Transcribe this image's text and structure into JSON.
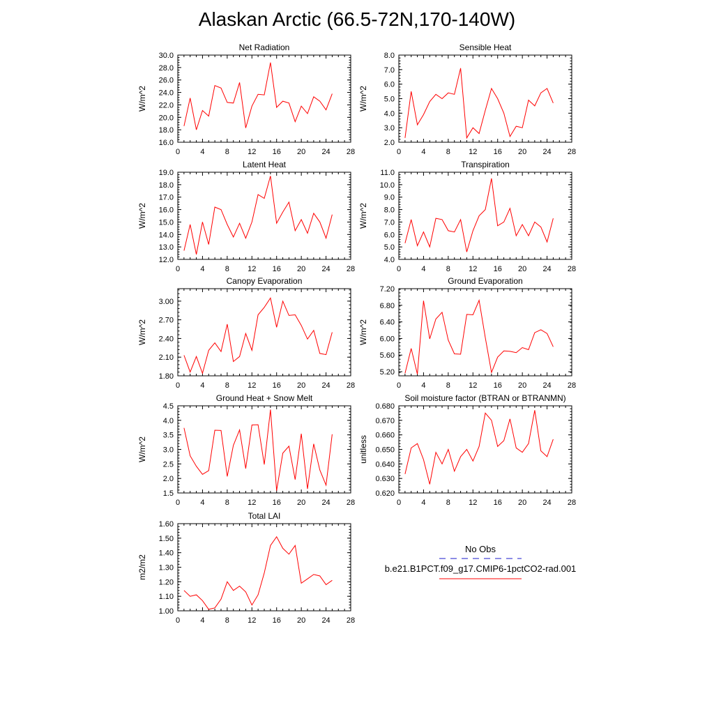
{
  "title": "Alaskan Arctic (66.5-72N,170-140W)",
  "legend": {
    "entries": [
      {
        "label": "No Obs",
        "color": "#1a1acc",
        "dash": "dashed"
      },
      {
        "label": "b.e21.B1PCT.f09_g17.CMIP6-1pctCO2-rad.001",
        "color": "#ff0000",
        "dash": "solid"
      }
    ]
  },
  "chart_data": [
    {
      "type": "line",
      "title": "Net Radiation",
      "ylabel": "W/m^2",
      "xlim": [
        0,
        28
      ],
      "ylim": [
        16,
        30
      ],
      "xticks": [
        0,
        4,
        8,
        12,
        16,
        20,
        24,
        28
      ],
      "yticks": [
        "16.0",
        "18.0",
        "20.0",
        "22.0",
        "24.0",
        "26.0",
        "28.0",
        "30.0"
      ],
      "series": [
        {
          "color": "#ff0000",
          "x": [
            1,
            2,
            3,
            4,
            5,
            6,
            7,
            8,
            9,
            10,
            11,
            12,
            13,
            14,
            15,
            16,
            17,
            18,
            19,
            20,
            21,
            22,
            23,
            24,
            25
          ],
          "values": [
            18.6,
            23.1,
            18.0,
            21.1,
            20.2,
            25.1,
            24.7,
            22.4,
            22.3,
            25.6,
            18.3,
            21.8,
            23.7,
            23.6,
            28.8,
            21.6,
            22.6,
            22.3,
            19.3,
            21.8,
            20.6,
            23.3,
            22.6,
            21.2,
            23.8
          ]
        }
      ]
    },
    {
      "type": "line",
      "title": "Sensible Heat",
      "ylabel": "W/m^2",
      "xlim": [
        0,
        28
      ],
      "ylim": [
        2,
        8
      ],
      "xticks": [
        0,
        4,
        8,
        12,
        16,
        20,
        24,
        28
      ],
      "yticks": [
        "2.0",
        "3.0",
        "4.0",
        "5.0",
        "6.0",
        "7.0",
        "8.0"
      ],
      "series": [
        {
          "color": "#ff0000",
          "x": [
            1,
            2,
            3,
            4,
            5,
            6,
            7,
            8,
            9,
            10,
            11,
            12,
            13,
            14,
            15,
            16,
            17,
            18,
            19,
            20,
            21,
            22,
            23,
            24,
            25
          ],
          "values": [
            2.3,
            5.5,
            3.2,
            3.9,
            4.8,
            5.3,
            5.0,
            5.4,
            5.3,
            7.1,
            2.3,
            3.0,
            2.6,
            4.2,
            5.7,
            5.0,
            4.0,
            2.4,
            3.1,
            3.0,
            4.9,
            4.5,
            5.4,
            5.7,
            4.7
          ]
        }
      ]
    },
    {
      "type": "line",
      "title": "Latent Heat",
      "ylabel": "W/m^2",
      "xlim": [
        0,
        28
      ],
      "ylim": [
        12,
        19
      ],
      "xticks": [
        0,
        4,
        8,
        12,
        16,
        20,
        24,
        28
      ],
      "yticks": [
        "12.0",
        "13.0",
        "14.0",
        "15.0",
        "16.0",
        "17.0",
        "18.0",
        "19.0"
      ],
      "series": [
        {
          "color": "#ff0000",
          "x": [
            1,
            2,
            3,
            4,
            5,
            6,
            7,
            8,
            9,
            10,
            11,
            12,
            13,
            14,
            15,
            16,
            17,
            18,
            19,
            20,
            21,
            22,
            23,
            24,
            25
          ],
          "values": [
            12.7,
            14.8,
            12.4,
            15.0,
            13.2,
            16.2,
            16.0,
            14.8,
            13.8,
            14.9,
            13.7,
            15.0,
            17.2,
            16.9,
            18.7,
            14.9,
            15.8,
            16.6,
            14.3,
            15.2,
            14.1,
            15.7,
            15.0,
            13.7,
            15.6
          ]
        }
      ]
    },
    {
      "type": "line",
      "title": "Transpiration",
      "ylabel": "W/m^2",
      "xlim": [
        0,
        28
      ],
      "ylim": [
        4,
        11
      ],
      "xticks": [
        0,
        4,
        8,
        12,
        16,
        20,
        24,
        28
      ],
      "yticks": [
        "4.0",
        "5.0",
        "6.0",
        "7.0",
        "8.0",
        "9.0",
        "10.0",
        "11.0"
      ],
      "series": [
        {
          "color": "#ff0000",
          "x": [
            1,
            2,
            3,
            4,
            5,
            6,
            7,
            8,
            9,
            10,
            11,
            12,
            13,
            14,
            15,
            16,
            17,
            18,
            19,
            20,
            21,
            22,
            23,
            24,
            25
          ],
          "values": [
            5.3,
            7.2,
            5.1,
            6.2,
            5.0,
            7.3,
            7.2,
            6.3,
            6.2,
            7.2,
            4.6,
            6.3,
            7.5,
            8.0,
            10.5,
            6.7,
            7.0,
            8.1,
            5.9,
            6.8,
            5.9,
            7.0,
            6.6,
            5.4,
            7.3
          ]
        }
      ]
    },
    {
      "type": "line",
      "title": "Canopy Evaporation",
      "ylabel": "W/m^2",
      "xlim": [
        0,
        28
      ],
      "ylim": [
        1.8,
        3.2
      ],
      "xticks": [
        0,
        4,
        8,
        12,
        16,
        20,
        24,
        28
      ],
      "yticks": [
        "1.80",
        "2.10",
        "2.40",
        "2.70",
        "3.00"
      ],
      "series": [
        {
          "color": "#ff0000",
          "x": [
            1,
            2,
            3,
            4,
            5,
            6,
            7,
            8,
            9,
            10,
            11,
            12,
            13,
            14,
            15,
            16,
            17,
            18,
            19,
            20,
            21,
            22,
            23,
            24,
            25
          ],
          "values": [
            2.13,
            1.86,
            2.11,
            1.84,
            2.21,
            2.33,
            2.19,
            2.63,
            2.03,
            2.11,
            2.48,
            2.21,
            2.78,
            2.9,
            3.05,
            2.58,
            3.0,
            2.77,
            2.78,
            2.61,
            2.39,
            2.53,
            2.16,
            2.14,
            2.5
          ]
        }
      ]
    },
    {
      "type": "line",
      "title": "Ground Evaporation",
      "ylabel": "W/m^2",
      "xlim": [
        0,
        28
      ],
      "ylim": [
        5.1,
        7.2
      ],
      "xticks": [
        0,
        4,
        8,
        12,
        16,
        20,
        24,
        28
      ],
      "yticks": [
        "5.20",
        "5.60",
        "6.00",
        "6.40",
        "6.80",
        "7.20"
      ],
      "series": [
        {
          "color": "#ff0000",
          "x": [
            1,
            2,
            3,
            4,
            5,
            6,
            7,
            8,
            9,
            10,
            11,
            12,
            13,
            14,
            15,
            16,
            17,
            18,
            19,
            20,
            21,
            22,
            23,
            24,
            25
          ],
          "values": [
            5.16,
            5.76,
            5.14,
            6.91,
            5.99,
            6.47,
            6.63,
            5.96,
            5.63,
            5.62,
            6.58,
            6.57,
            6.92,
            6.02,
            5.18,
            5.55,
            5.7,
            5.69,
            5.66,
            5.78,
            5.73,
            6.14,
            6.21,
            6.12,
            5.8
          ]
        }
      ]
    },
    {
      "type": "line",
      "title": "Ground Heat + Snow Melt",
      "ylabel": "W/m^2",
      "xlim": [
        0,
        28
      ],
      "ylim": [
        1.5,
        4.5
      ],
      "xticks": [
        0,
        4,
        8,
        12,
        16,
        20,
        24,
        28
      ],
      "yticks": [
        "1.5",
        "2.0",
        "2.5",
        "3.0",
        "3.5",
        "4.0",
        "4.5"
      ],
      "series": [
        {
          "color": "#ff0000",
          "x": [
            1,
            2,
            3,
            4,
            5,
            6,
            7,
            8,
            9,
            10,
            11,
            12,
            13,
            14,
            15,
            16,
            17,
            18,
            19,
            20,
            21,
            22,
            23,
            24,
            25
          ],
          "values": [
            3.74,
            2.78,
            2.42,
            2.14,
            2.27,
            3.66,
            3.65,
            2.07,
            3.14,
            3.67,
            2.34,
            3.84,
            3.85,
            2.48,
            4.37,
            1.58,
            2.87,
            3.11,
            1.96,
            3.54,
            1.64,
            3.19,
            2.29,
            1.77,
            3.52
          ]
        }
      ]
    },
    {
      "type": "line",
      "title": "Soil moisture factor (BTRAN or BTRANMN)",
      "ylabel": "unitless",
      "xlim": [
        0,
        28
      ],
      "ylim": [
        0.62,
        0.68
      ],
      "xticks": [
        0,
        4,
        8,
        12,
        16,
        20,
        24,
        28
      ],
      "yticks": [
        "0.620",
        "0.630",
        "0.640",
        "0.650",
        "0.660",
        "0.670",
        "0.680"
      ],
      "series": [
        {
          "color": "#ff0000",
          "x": [
            1,
            2,
            3,
            4,
            5,
            6,
            7,
            8,
            9,
            10,
            11,
            12,
            13,
            14,
            15,
            16,
            17,
            18,
            19,
            20,
            21,
            22,
            23,
            24,
            25
          ],
          "values": [
            0.633,
            0.651,
            0.654,
            0.643,
            0.626,
            0.648,
            0.64,
            0.65,
            0.635,
            0.645,
            0.65,
            0.642,
            0.652,
            0.675,
            0.67,
            0.652,
            0.656,
            0.671,
            0.651,
            0.648,
            0.654,
            0.677,
            0.649,
            0.645,
            0.657
          ]
        }
      ]
    },
    {
      "type": "line",
      "title": "Total LAI",
      "ylabel": "m2/m2",
      "xlim": [
        0,
        28
      ],
      "ylim": [
        1.0,
        1.6
      ],
      "xticks": [
        0,
        4,
        8,
        12,
        16,
        20,
        24,
        28
      ],
      "yticks": [
        "1.00",
        "1.10",
        "1.20",
        "1.30",
        "1.40",
        "1.50",
        "1.60"
      ],
      "series": [
        {
          "color": "#ff0000",
          "x": [
            1,
            2,
            3,
            4,
            5,
            6,
            7,
            8,
            9,
            10,
            11,
            12,
            13,
            14,
            15,
            16,
            17,
            18,
            19,
            20,
            21,
            22,
            23,
            24,
            25
          ],
          "values": [
            1.14,
            1.1,
            1.11,
            1.07,
            1.01,
            1.02,
            1.08,
            1.2,
            1.14,
            1.17,
            1.13,
            1.04,
            1.11,
            1.26,
            1.45,
            1.51,
            1.43,
            1.39,
            1.45,
            1.19,
            1.22,
            1.25,
            1.24,
            1.18,
            1.21
          ]
        }
      ]
    }
  ]
}
